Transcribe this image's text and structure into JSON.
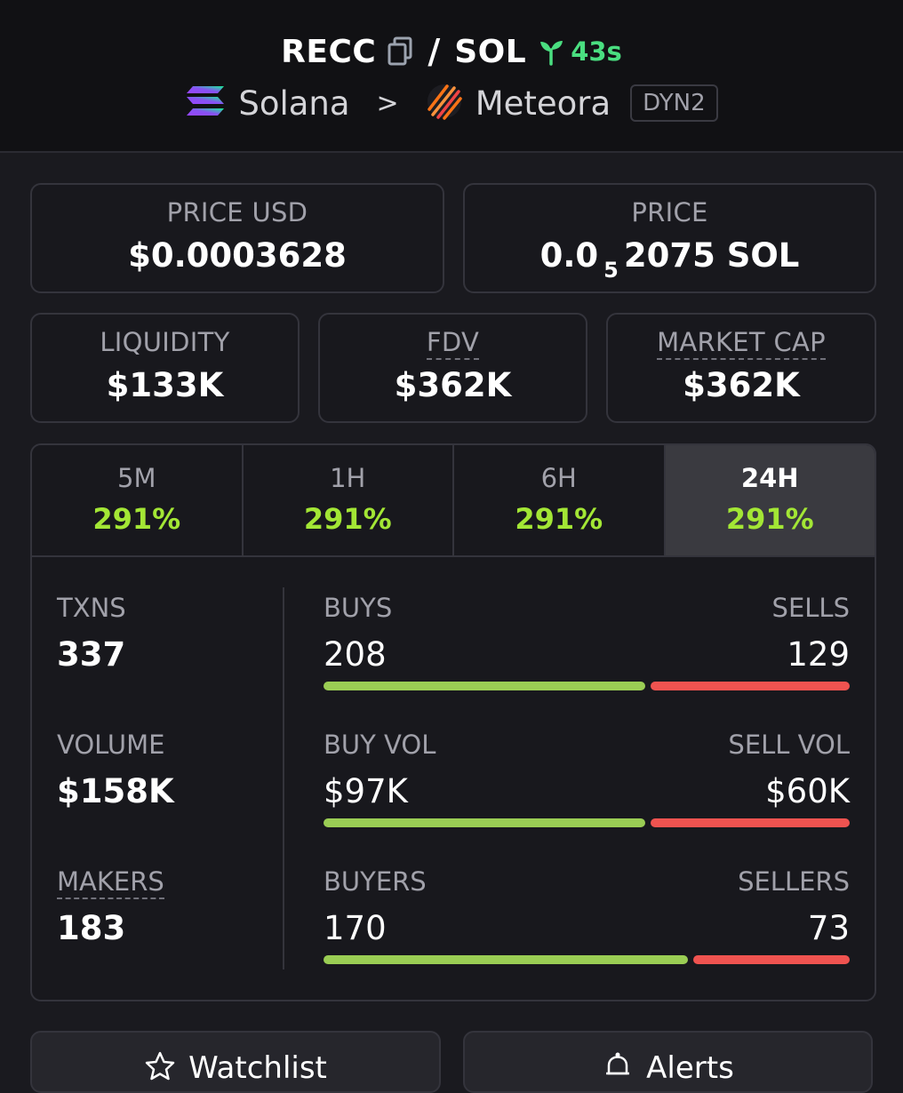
{
  "header": {
    "base_token": "RECC",
    "separator": "/",
    "quote_token": "SOL",
    "pair_age": "43s",
    "chain": "Solana",
    "chevron": ">",
    "dex": "Meteora",
    "pool_badge": "DYN2"
  },
  "price_usd": {
    "label": "PRICE USD",
    "value": "$0.0003628"
  },
  "price_native": {
    "label": "PRICE",
    "prefix": "0.0",
    "zeros_subscript": "5",
    "digits": "2075 SOL"
  },
  "liquidity": {
    "label": "LIQUIDITY",
    "value": "$133K"
  },
  "fdv": {
    "label": "FDV",
    "value": "$362K"
  },
  "market_cap": {
    "label": "MARKET CAP",
    "value": "$362K"
  },
  "timeframes": [
    {
      "label": "5M",
      "change": "291%"
    },
    {
      "label": "1H",
      "change": "291%"
    },
    {
      "label": "6H",
      "change": "291%"
    },
    {
      "label": "24H",
      "change": "291%"
    }
  ],
  "active_timeframe": "24H",
  "stats": {
    "txns": {
      "label": "TXNS",
      "value": "337"
    },
    "volume": {
      "label": "VOLUME",
      "value": "$158K"
    },
    "makers": {
      "label": "MAKERS",
      "value": "183"
    },
    "buys": {
      "label": "BUYS",
      "value": "208",
      "sell_label": "SELLS",
      "sell_value": "129",
      "buy_share": 0.617
    },
    "buy_vol": {
      "label": "BUY VOL",
      "value": "$97K",
      "sell_label": "SELL VOL",
      "sell_value": "$60K",
      "buy_share": 0.617
    },
    "buyers": {
      "label": "BUYERS",
      "value": "170",
      "sell_label": "SELLERS",
      "sell_value": "73",
      "buy_share": 0.7
    }
  },
  "actions": {
    "watchlist_label": "Watchlist",
    "alerts_label": "Alerts"
  },
  "colors": {
    "buy": "#9acd54",
    "sell": "#ef5350",
    "positive": "#a3e635",
    "age": "#4ade80"
  }
}
